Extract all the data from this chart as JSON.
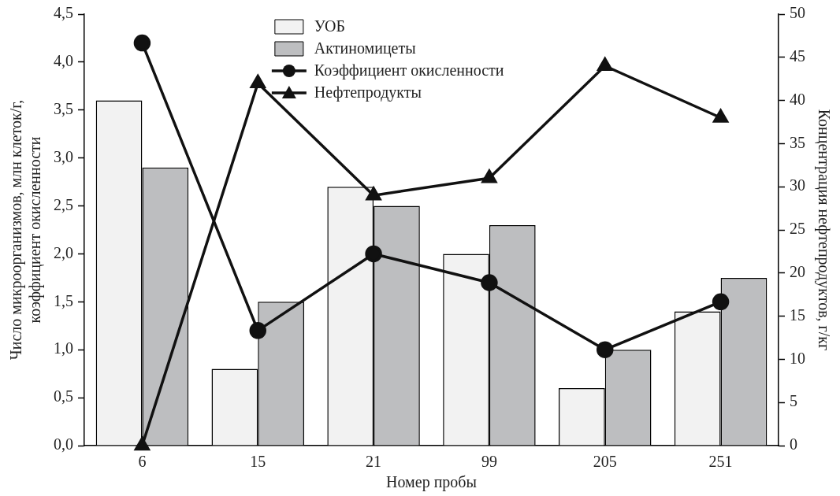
{
  "chart_data": {
    "type": "bar",
    "xlabel": "Номер пробы",
    "ylabel": "Число микроорганизмов, млн клеток/г,\nкоэффициент окисленности",
    "y2label": "Концентрация нефтепродуктов, г/кг",
    "categories": [
      "6",
      "15",
      "21",
      "99",
      "205",
      "251"
    ],
    "series": [
      {
        "name": "УОБ",
        "color": "#f2f2f2",
        "values": [
          3.6,
          0.8,
          2.7,
          2.0,
          0.6,
          1.4
        ]
      },
      {
        "name": "Актиномицеты",
        "color": "#bdbec0",
        "values": [
          2.9,
          1.5,
          2.5,
          2.3,
          1.0,
          1.75
        ]
      },
      {
        "name": "Коэффициент окисленности",
        "type": "line",
        "color": "#111111",
        "marker": "circle",
        "values": [
          4.2,
          1.2,
          2.0,
          1.7,
          1.0,
          1.5
        ]
      },
      {
        "name": "Нефтепродукты",
        "type": "line",
        "color": "#111111",
        "marker": "triangle",
        "axis": "y2",
        "values": [
          0,
          42,
          29,
          31,
          44,
          38
        ]
      }
    ],
    "ylim": [
      0,
      4.5
    ],
    "yticks": [
      {
        "value": 0,
        "label": "0,0"
      },
      {
        "value": 0.5,
        "label": "0,5"
      },
      {
        "value": 1,
        "label": "1,0"
      },
      {
        "value": 1.5,
        "label": "1,5"
      },
      {
        "value": 2,
        "label": "2,0"
      },
      {
        "value": 2.5,
        "label": "2,5"
      },
      {
        "value": 3,
        "label": "3,0"
      },
      {
        "value": 3.5,
        "label": "3,5"
      },
      {
        "value": 4,
        "label": "4,0"
      },
      {
        "value": 4.5,
        "label": "4,5"
      }
    ],
    "y2lim": [
      0,
      50
    ],
    "y2ticks": [
      0,
      5,
      10,
      15,
      20,
      25,
      30,
      35,
      40,
      45,
      50
    ],
    "grid": false,
    "legend": "top",
    "line_style": "solid"
  }
}
